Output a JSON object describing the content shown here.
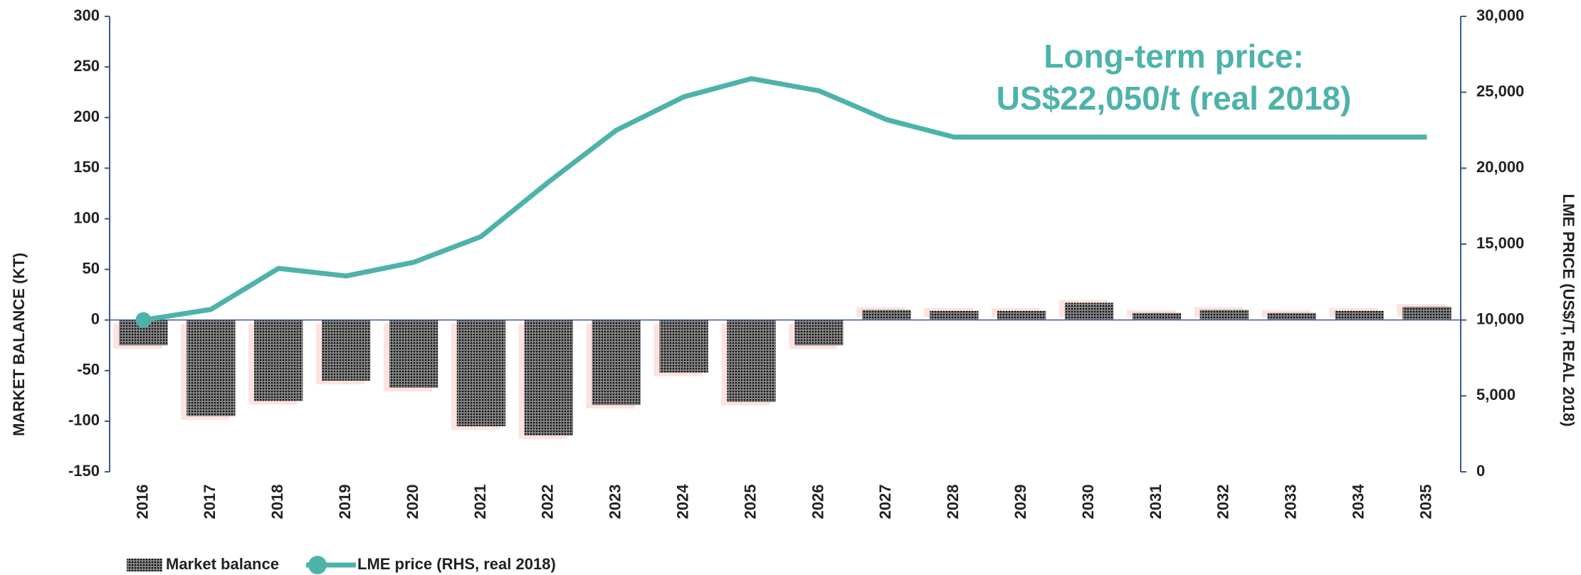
{
  "chart_data": {
    "type": "bar_line",
    "annotation": [
      "Long-term price:",
      "US$22,050/t (real 2018)"
    ],
    "y_label": "MARKET BALANCE (KT)",
    "y2_label": "LME PRICE (US$/T, REAL 2018)",
    "categories": [
      "2016",
      "2017",
      "2018",
      "2019",
      "2020",
      "2021",
      "2022",
      "2023",
      "2024",
      "2025",
      "2026",
      "2027",
      "2028",
      "2029",
      "2030",
      "2031",
      "2032",
      "2033",
      "2034",
      "2035"
    ],
    "series": [
      {
        "name": "Market balance",
        "type": "bar",
        "color": "#333333",
        "values": [
          -25,
          -95,
          -80,
          -60,
          -67,
          -105,
          -114,
          -84,
          -52,
          -81,
          -25,
          10,
          9,
          9,
          17,
          7,
          10,
          7,
          9,
          13
        ]
      },
      {
        "name": "LME price (RHS, real 2018)",
        "type": "line",
        "axis": "y2",
        "color": "#4db3aa",
        "values": [
          10000,
          10700,
          13400,
          12900,
          13800,
          15500,
          19100,
          22500,
          24700,
          25900,
          25100,
          23200,
          22050,
          22050,
          22050,
          22050,
          22050,
          22050,
          22050,
          22050
        ]
      }
    ],
    "ylim": [
      -150,
      300
    ],
    "yticks": [
      -150,
      -100,
      -50,
      0,
      50,
      100,
      150,
      200,
      250,
      300
    ],
    "y2lim": [
      0,
      30000
    ],
    "y2ticks": [
      0,
      {
        "value": 5000,
        "label": "5,000"
      },
      {
        "value": 10000,
        "label": "10,000"
      },
      {
        "value": 15000,
        "label": "15,000"
      },
      {
        "value": 20000,
        "label": "20,000"
      },
      {
        "value": 25000,
        "label": "25,000"
      },
      {
        "value": 30000,
        "label": "30,000"
      }
    ]
  }
}
